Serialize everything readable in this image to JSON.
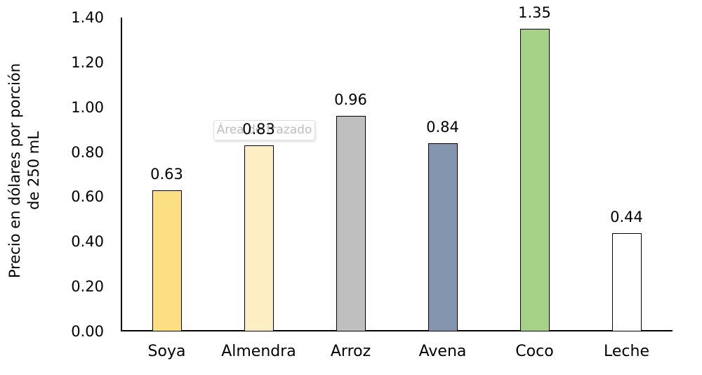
{
  "tooltip": {
    "text": "Área de trazado"
  },
  "chart_data": {
    "type": "bar",
    "categories": [
      "Soya",
      "Almendra",
      "Arroz",
      "Avena",
      "Coco",
      "Leche"
    ],
    "values": [
      0.63,
      0.83,
      0.96,
      0.84,
      1.35,
      0.44
    ],
    "value_labels": [
      "0.63",
      "0.83",
      "0.96",
      "0.84",
      "1.35",
      "0.44"
    ],
    "bar_colors": [
      "#FCDF83",
      "#FDEFC3",
      "#BFBFBF",
      "#8496AF",
      "#A5D287",
      "#FFFFFF"
    ],
    "bar_border_color": "#000000",
    "title": "",
    "xlabel": "",
    "ylabel": "Precio en dólares por porción de 250 mL",
    "ylabel_lines": [
      "Precio en dólares por porción",
      "de 250 mL"
    ],
    "ylim": [
      0.0,
      1.4
    ],
    "yticks": [
      "0.00",
      "0.20",
      "0.40",
      "0.60",
      "0.80",
      "1.00",
      "1.20",
      "1.40"
    ],
    "grid": false,
    "legend": false,
    "axis_color": "#000000",
    "text_color": "#000000"
  }
}
